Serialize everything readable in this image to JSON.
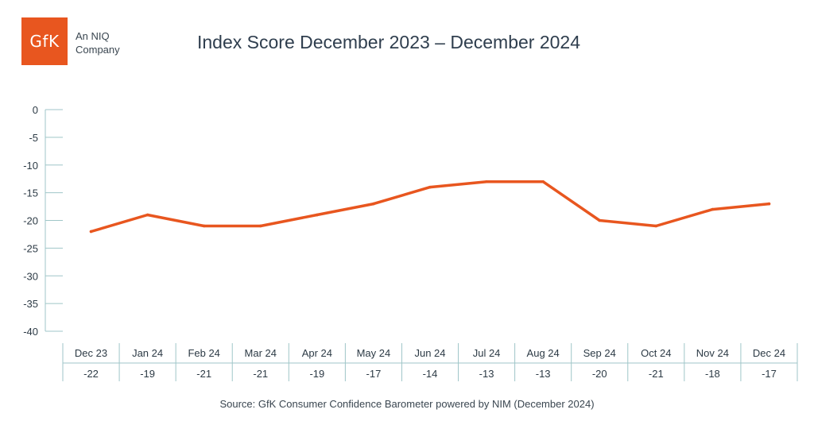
{
  "logo": {
    "text": "GfK",
    "line1": "An NIQ",
    "line2": "Company"
  },
  "title": "Index Score December 2023 – December 2024",
  "source": "Source: GfK Consumer Confidence Barometer powered by NIM (December 2024)",
  "colors": {
    "line": "#e8561f",
    "axis": "#9fc6c8",
    "text": "#2c3a45"
  },
  "chart_data": {
    "type": "line",
    "title": "Index Score December 2023 – December 2024",
    "categories": [
      "Dec 23",
      "Jan 24",
      "Feb 24",
      "Mar 24",
      "Apr 24",
      "May 24",
      "Jun 24",
      "Jul 24",
      "Aug 24",
      "Sep 24",
      "Oct 24",
      "Nov 24",
      "Dec 24"
    ],
    "values": [
      -22,
      -19,
      -21,
      -21,
      -19,
      -17,
      -14,
      -13,
      -13,
      -20,
      -21,
      -18,
      -17
    ],
    "value_labels": [
      "-22",
      "-19",
      "-21",
      "-21",
      "-19",
      "-17",
      "-14",
      "-13",
      "-13",
      "-20",
      "-21",
      "-18",
      "-17"
    ],
    "ylim": [
      -40,
      0
    ],
    "yticks": [
      0,
      -5,
      -10,
      -15,
      -20,
      -25,
      -30,
      -35,
      -40
    ],
    "grid": false,
    "legend": "none",
    "data_table": "below"
  }
}
